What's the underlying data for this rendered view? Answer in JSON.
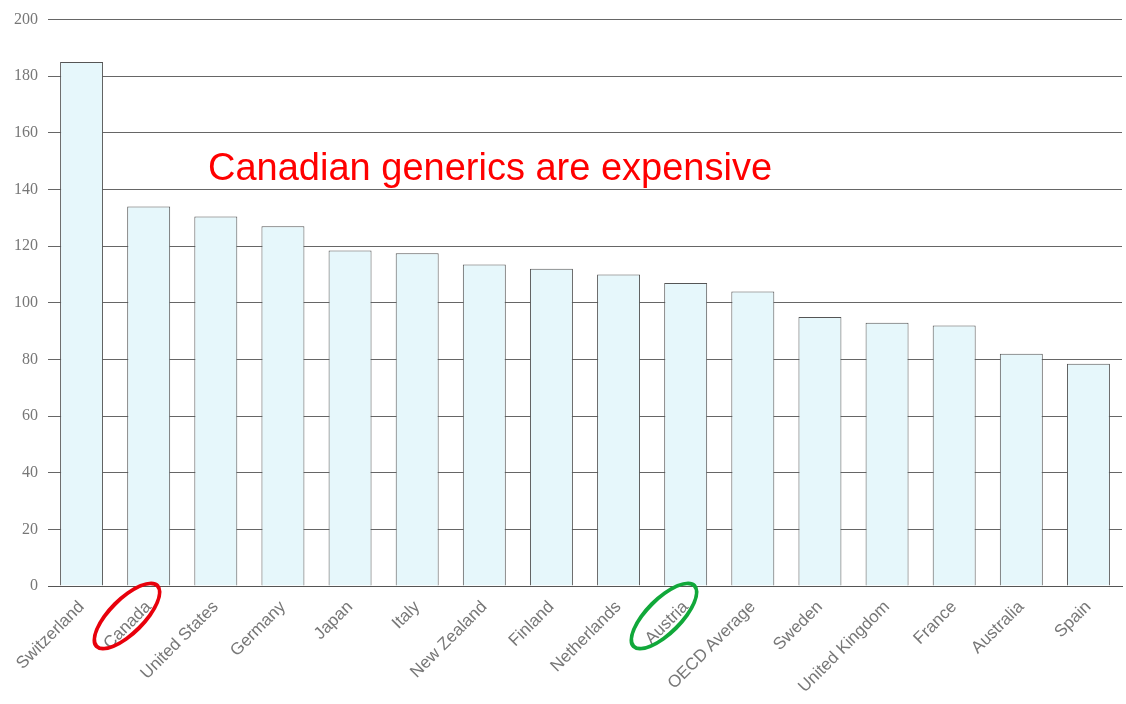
{
  "chart_data": {
    "type": "bar",
    "categories": [
      "Switzerland",
      "Canada",
      "United States",
      "Germany",
      "Japan",
      "Italy",
      "New Zealand",
      "Finland",
      "Netherlands",
      "Austria",
      "OECD Average",
      "Sweden",
      "United Kingdom",
      "France",
      "Australia",
      "Spain"
    ],
    "values": [
      185,
      134,
      130.5,
      127,
      118.5,
      117.5,
      113.5,
      112,
      110,
      107,
      104,
      95,
      93,
      92,
      82,
      78.5
    ],
    "color": "#e6f7fb",
    "ylim": [
      0,
      200
    ],
    "yticks": [
      0,
      20,
      40,
      60,
      80,
      100,
      120,
      140,
      160,
      180,
      200
    ],
    "grid": "y",
    "legend": false,
    "annotations": [
      "Canadian generics are expensive"
    ]
  }
}
